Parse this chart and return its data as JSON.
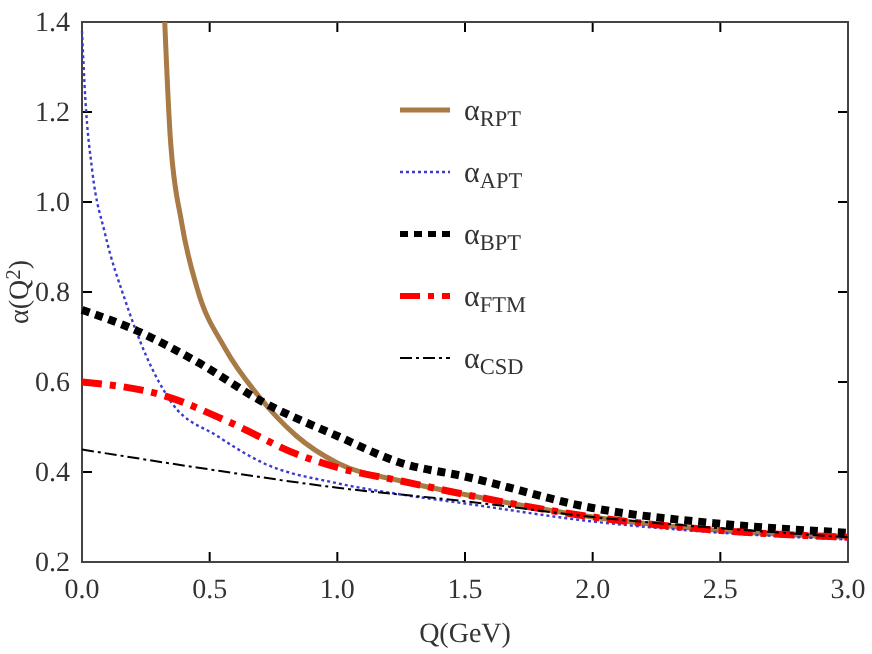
{
  "chart_data": {
    "type": "line",
    "xlabel": "Q(GeV)",
    "ylabel": "α(Q$^{2}$)",
    "xlim": [
      0,
      3
    ],
    "xticks": [
      {
        "value": 0,
        "label": "0.0"
      },
      {
        "value": 0.5,
        "label": "0.5"
      },
      {
        "value": 1,
        "label": "1.0"
      },
      {
        "value": 1.5,
        "label": "1.5"
      },
      {
        "value": 2,
        "label": "2.0"
      },
      {
        "value": 2.5,
        "label": "2.5"
      },
      {
        "value": 3,
        "label": "3.0"
      }
    ],
    "ylim": [
      0.2,
      1.4
    ],
    "yticks": [
      0.2,
      0.4,
      0.6,
      0.8,
      {
        "value": 1,
        "label": "1.0"
      },
      1.2,
      1.4
    ],
    "grid": false,
    "legend": "top right",
    "series": [
      {
        "name": "α$_{RPT}$",
        "color": "#a87a45",
        "line_style": "solid",
        "x": [
          0.324,
          0.345,
          0.39,
          0.45,
          0.56,
          0.69,
          0.84,
          1.0,
          1.25,
          1.5,
          2.0,
          2.5,
          3.0
        ],
        "values": [
          1.4,
          1.15,
          0.955,
          0.81,
          0.675,
          0.57,
          0.48,
          0.42,
          0.38,
          0.35,
          0.3,
          0.27,
          0.255
        ]
      },
      {
        "name": "α$_{APT}$",
        "color": "#3b3bd0",
        "line_style": "dotted",
        "x": [
          0,
          0.013,
          0.04,
          0.09,
          0.17,
          0.25,
          0.35,
          0.53,
          0.71,
          1.0,
          1.25,
          1.5,
          2.0,
          2.5,
          3.0
        ],
        "values": [
          1.38,
          1.23,
          1.07,
          0.93,
          0.78,
          0.66,
          0.555,
          0.48,
          0.42,
          0.375,
          0.35,
          0.33,
          0.29,
          0.265,
          0.25
        ]
      },
      {
        "name": "α$_{BPT}$",
        "color": "#000000",
        "line_style": "dotted",
        "x": [
          0,
          0.19,
          0.45,
          0.71,
          1.0,
          1.25,
          1.5,
          2.0,
          2.5,
          3.0
        ],
        "values": [
          0.76,
          0.72,
          0.645,
          0.555,
          0.48,
          0.42,
          0.39,
          0.32,
          0.285,
          0.265
        ]
      },
      {
        "name": "α$_{FTM}$",
        "color": "#ff0000",
        "line_style": "dashed",
        "x": [
          0,
          0.32,
          0.58,
          0.84,
          1.0,
          1.25,
          1.5,
          2.0,
          2.5,
          3.0
        ],
        "values": [
          0.6,
          0.57,
          0.51,
          0.44,
          0.41,
          0.38,
          0.35,
          0.3,
          0.27,
          0.255
        ]
      },
      {
        "name": "α$_{CSD}$",
        "color": "#000000",
        "line_style": "dashed",
        "x": [
          0,
          0.45,
          1.0,
          1.5,
          2.0,
          2.5,
          3.0
        ],
        "values": [
          0.45,
          0.41,
          0.365,
          0.335,
          0.3,
          0.275,
          0.255
        ]
      }
    ]
  }
}
